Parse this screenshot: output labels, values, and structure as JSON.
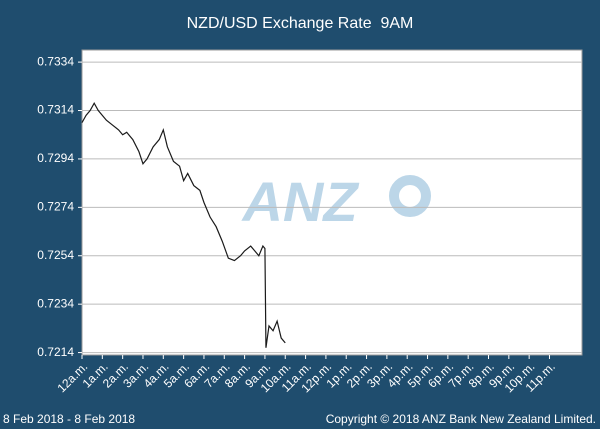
{
  "chart_data": {
    "type": "line",
    "title": "NZD/USD Exchange Rate  9AM",
    "date_range": "8 Feb 2018 - 8 Feb 2018",
    "copyright": "Copyright © 2018 ANZ Bank New Zealand Limited.",
    "watermark": "ANZ",
    "x": [
      0,
      0.2,
      0.4,
      0.6,
      0.8,
      1.0,
      1.2,
      1.5,
      1.8,
      2.0,
      2.2,
      2.5,
      2.8,
      3.0,
      3.2,
      3.5,
      3.8,
      4.0,
      4.2,
      4.5,
      4.8,
      5.0,
      5.2,
      5.5,
      5.8,
      6.0,
      6.3,
      6.6,
      6.9,
      7.2,
      7.5,
      7.8,
      8.0,
      8.3,
      8.5,
      8.7,
      8.9,
      9.0,
      9.05,
      9.2,
      9.4,
      9.6,
      9.8,
      10.0
    ],
    "series": [
      {
        "name": "NZD/USD",
        "color": "#1a1a1a",
        "values": [
          0.7309,
          0.7312,
          0.7314,
          0.7317,
          0.7314,
          0.7312,
          0.731,
          0.7308,
          0.7306,
          0.7304,
          0.7305,
          0.7302,
          0.7297,
          0.7292,
          0.7294,
          0.7299,
          0.7302,
          0.7306,
          0.7299,
          0.7293,
          0.7291,
          0.7285,
          0.7288,
          0.7283,
          0.7281,
          0.7276,
          0.727,
          0.7266,
          0.726,
          0.7253,
          0.7252,
          0.7254,
          0.7256,
          0.7258,
          0.7256,
          0.7254,
          0.7258,
          0.7257,
          0.7216,
          0.7225,
          0.7223,
          0.7227,
          0.722,
          0.7218
        ]
      }
    ],
    "xlim": [
      0,
      24.6
    ],
    "xticks": [
      {
        "value": 0,
        "label": "12a.m."
      },
      {
        "value": 1,
        "label": "1a.m."
      },
      {
        "value": 2,
        "label": "2a.m."
      },
      {
        "value": 3,
        "label": "3a.m."
      },
      {
        "value": 4,
        "label": "4a.m."
      },
      {
        "value": 5,
        "label": "5a.m."
      },
      {
        "value": 6,
        "label": "6a.m."
      },
      {
        "value": 7,
        "label": "7a.m."
      },
      {
        "value": 8,
        "label": "8a.m."
      },
      {
        "value": 9,
        "label": "9a.m."
      },
      {
        "value": 10,
        "label": "10a.m."
      },
      {
        "value": 11,
        "label": "11a.m."
      },
      {
        "value": 12,
        "label": "12p.m."
      },
      {
        "value": 13,
        "label": "1p.m."
      },
      {
        "value": 14,
        "label": "2p.m."
      },
      {
        "value": 15,
        "label": "3p.m."
      },
      {
        "value": 16,
        "label": "4p.m."
      },
      {
        "value": 17,
        "label": "5p.m."
      },
      {
        "value": 18,
        "label": "6p.m."
      },
      {
        "value": 19,
        "label": "7p.m."
      },
      {
        "value": 20,
        "label": "8p.m."
      },
      {
        "value": 21,
        "label": "9p.m."
      },
      {
        "value": 22,
        "label": "10p.m."
      },
      {
        "value": 23,
        "label": "11p.m."
      }
    ],
    "ylim": [
      0.7213,
      0.7339
    ],
    "yticks": [
      0.7214,
      0.7234,
      0.7254,
      0.7274,
      0.7294,
      0.7314,
      0.7334
    ],
    "grid": true
  }
}
